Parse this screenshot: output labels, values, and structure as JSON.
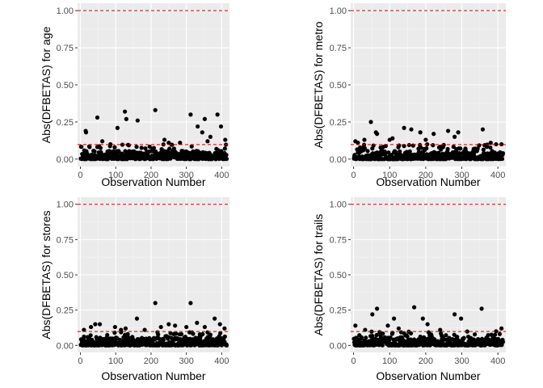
{
  "colors": {
    "panel_background": "#ebebeb",
    "grid_major": "#ffffff",
    "grid_minor": "#f5f5f5",
    "point": "#000000",
    "reference_line": "#cc0000",
    "tick_text": "#4d4d4d"
  },
  "chart_data": [
    {
      "type": "scatter",
      "xlabel": "Observation Number",
      "ylabel": "Abs(DFBETAS) for  age",
      "xlim": [
        -8,
        422
      ],
      "ylim": [
        -0.05,
        1.05
      ],
      "x_ticks": [
        "0",
        "100",
        "200",
        "300",
        "400"
      ],
      "y_ticks": [
        "0.00",
        "0.25",
        "0.50",
        "0.75",
        "1.00"
      ],
      "reference_lines": [
        1.0,
        0.098
      ],
      "grid": true,
      "outliers": [
        [
          15,
          0.19
        ],
        [
          16,
          0.18
        ],
        [
          48,
          0.28
        ],
        [
          62,
          0.12
        ],
        [
          105,
          0.21
        ],
        [
          126,
          0.32
        ],
        [
          130,
          0.27
        ],
        [
          162,
          0.26
        ],
        [
          212,
          0.33
        ],
        [
          238,
          0.13
        ],
        [
          250,
          0.11
        ],
        [
          282,
          0.11
        ],
        [
          312,
          0.3
        ],
        [
          332,
          0.22
        ],
        [
          345,
          0.18
        ],
        [
          352,
          0.27
        ],
        [
          360,
          0.12
        ],
        [
          368,
          0.15
        ],
        [
          388,
          0.3
        ],
        [
          398,
          0.22
        ],
        [
          410,
          0.13
        ]
      ],
      "n_points": 414,
      "seed": 11
    },
    {
      "type": "scatter",
      "xlabel": "Observation Number",
      "ylabel": "Abs(DFBETAS) for  metro",
      "xlim": [
        -8,
        422
      ],
      "ylim": [
        -0.05,
        1.05
      ],
      "x_ticks": [
        "0",
        "100",
        "200",
        "300",
        "400"
      ],
      "y_ticks": [
        "0.00",
        "0.25",
        "0.50",
        "0.75",
        "1.00"
      ],
      "reference_lines": [
        1.0,
        0.098
      ],
      "grid": true,
      "outliers": [
        [
          5,
          0.12
        ],
        [
          12,
          0.11
        ],
        [
          30,
          0.13
        ],
        [
          48,
          0.25
        ],
        [
          62,
          0.18
        ],
        [
          65,
          0.17
        ],
        [
          100,
          0.13
        ],
        [
          108,
          0.14
        ],
        [
          140,
          0.21
        ],
        [
          160,
          0.2
        ],
        [
          185,
          0.18
        ],
        [
          200,
          0.13
        ],
        [
          222,
          0.17
        ],
        [
          262,
          0.19
        ],
        [
          280,
          0.15
        ],
        [
          290,
          0.18
        ],
        [
          358,
          0.2
        ],
        [
          380,
          0.11
        ],
        [
          395,
          0.1
        ],
        [
          410,
          0.1
        ]
      ],
      "n_points": 414,
      "seed": 23
    },
    {
      "type": "scatter",
      "xlabel": "Observation Number",
      "ylabel": "Abs(DFBETAS) for  stores",
      "xlim": [
        -8,
        422
      ],
      "ylim": [
        -0.05,
        1.05
      ],
      "x_ticks": [
        "0",
        "100",
        "200",
        "300",
        "400"
      ],
      "y_ticks": [
        "0.00",
        "0.25",
        "0.50",
        "0.75",
        "1.00"
      ],
      "reference_lines": [
        1.0,
        0.098
      ],
      "grid": true,
      "outliers": [
        [
          10,
          0.11
        ],
        [
          30,
          0.13
        ],
        [
          42,
          0.15
        ],
        [
          55,
          0.15
        ],
        [
          98,
          0.13
        ],
        [
          115,
          0.11
        ],
        [
          128,
          0.12
        ],
        [
          160,
          0.19
        ],
        [
          182,
          0.11
        ],
        [
          212,
          0.3
        ],
        [
          228,
          0.13
        ],
        [
          250,
          0.15
        ],
        [
          268,
          0.14
        ],
        [
          300,
          0.13
        ],
        [
          312,
          0.3
        ],
        [
          330,
          0.16
        ],
        [
          352,
          0.13
        ],
        [
          380,
          0.19
        ],
        [
          395,
          0.15
        ],
        [
          408,
          0.12
        ]
      ],
      "n_points": 414,
      "seed": 37
    },
    {
      "type": "scatter",
      "xlabel": "Observation Number",
      "ylabel": "Abs(DFBETAS) for  trails",
      "xlim": [
        -8,
        422
      ],
      "ylim": [
        -0.05,
        1.05
      ],
      "x_ticks": [
        "0",
        "100",
        "200",
        "300",
        "400"
      ],
      "y_ticks": [
        "0.00",
        "0.25",
        "0.50",
        "0.75",
        "1.00"
      ],
      "reference_lines": [
        1.0,
        0.098
      ],
      "grid": true,
      "outliers": [
        [
          5,
          0.14
        ],
        [
          32,
          0.11
        ],
        [
          52,
          0.22
        ],
        [
          65,
          0.26
        ],
        [
          95,
          0.14
        ],
        [
          112,
          0.19
        ],
        [
          125,
          0.12
        ],
        [
          168,
          0.27
        ],
        [
          192,
          0.19
        ],
        [
          205,
          0.15
        ],
        [
          240,
          0.11
        ],
        [
          280,
          0.22
        ],
        [
          298,
          0.19
        ],
        [
          355,
          0.26
        ],
        [
          395,
          0.1
        ],
        [
          410,
          0.12
        ]
      ],
      "n_points": 414,
      "seed": 53
    }
  ]
}
